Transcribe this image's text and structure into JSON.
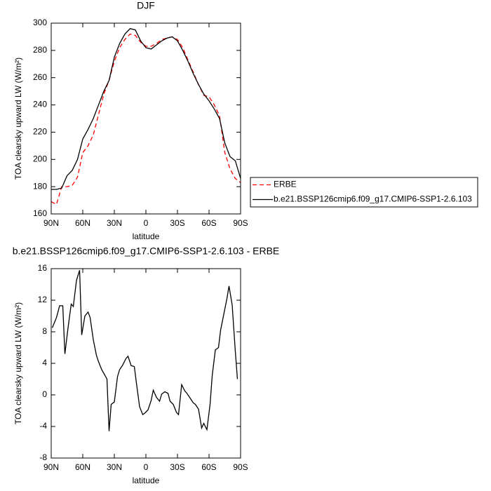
{
  "chart_data": [
    {
      "type": "line",
      "title": "DJF",
      "xlabel": "latitude",
      "ylabel": "TOA clearsky upward LW (W/m²)",
      "x": [
        90,
        85,
        80,
        75,
        70,
        65,
        60,
        55,
        50,
        45,
        40,
        35,
        30,
        25,
        20,
        15,
        10,
        5,
        0,
        -5,
        -10,
        -15,
        -20,
        -25,
        -30,
        -35,
        -40,
        -45,
        -50,
        -55,
        -60,
        -65,
        -70,
        -75,
        -80,
        -85,
        -90
      ],
      "series": [
        {
          "name": "ERBE",
          "color": "#ff0000",
          "dash": true,
          "values": [
            169,
            167,
            180,
            180,
            181,
            187,
            205,
            210,
            218,
            233,
            248,
            258,
            272,
            282,
            288,
            292,
            291,
            286,
            283,
            283,
            285,
            288,
            289,
            290,
            288,
            282,
            273,
            264,
            255,
            247,
            246,
            240,
            232,
            205,
            193,
            186,
            183
          ]
        },
        {
          "name": "b.e21.BSSP126cmip6.f09_g17.CMIP6-SSP1-2.6.103",
          "color": "#000000",
          "dash": false,
          "values": [
            178,
            178,
            179,
            188,
            192,
            200,
            215,
            222,
            230,
            240,
            250,
            258,
            275,
            285,
            292,
            296,
            295,
            287,
            282,
            281,
            284,
            287,
            289,
            290,
            287,
            280,
            272,
            263,
            255,
            248,
            243,
            237,
            230,
            212,
            202,
            199,
            186
          ]
        }
      ],
      "xlim": [
        90,
        -90
      ],
      "xticks": [
        {
          "value": 90,
          "label": "90N"
        },
        {
          "value": 60,
          "label": "60N"
        },
        {
          "value": 30,
          "label": "30N"
        },
        0,
        {
          "value": -30,
          "label": "30S"
        },
        {
          "value": -60,
          "label": "60S"
        },
        {
          "value": -90,
          "label": "90S"
        }
      ],
      "ylim": [
        160,
        300
      ],
      "yticks": [
        160,
        180,
        200,
        220,
        240,
        260,
        280,
        300
      ],
      "legend": "right"
    },
    {
      "type": "line",
      "title": "b.e21.BSSP126cmip6.f09_g17.CMIP6-SSP1-2.6.103 - ERBE",
      "xlabel": "latitude",
      "ylabel": "TOA clearsky upward LW (W/m²)",
      "x": [
        89,
        85,
        82,
        79,
        77,
        74,
        71,
        69,
        66,
        63,
        61,
        58,
        55,
        53,
        50,
        47,
        45,
        42,
        39,
        37,
        35,
        33,
        30,
        27,
        25,
        22,
        19,
        17,
        14,
        11,
        9,
        6,
        3,
        1,
        -2,
        -5,
        -7,
        -10,
        -13,
        -15,
        -18,
        -21,
        -23,
        -26,
        -29,
        -31,
        -34,
        -37,
        -39,
        -42,
        -45,
        -47,
        -50,
        -53,
        -55,
        -58,
        -61,
        -63,
        -66,
        -69,
        -71,
        -74,
        -77,
        -79,
        -82,
        -85,
        -87
      ],
      "values": [
        8.5,
        9.8,
        11.3,
        11.3,
        5.2,
        8.5,
        11.5,
        11.2,
        14.5,
        15.8,
        7.6,
        10,
        10.5,
        9.8,
        7,
        5,
        4.2,
        3.2,
        2.5,
        2,
        -4.6,
        -1.2,
        -0.9,
        2.3,
        3.2,
        3.8,
        4.6,
        4.9,
        3.7,
        3.6,
        1.5,
        -1.5,
        -2.5,
        -2.3,
        -1.9,
        -0.7,
        0.6,
        -0.3,
        -0.8,
        0.1,
        0.4,
        0.2,
        -0.8,
        -1.2,
        -2.2,
        -2.5,
        1.3,
        0.5,
        0.2,
        -0.4,
        -1,
        -1.2,
        -1.8,
        -4.2,
        -3.6,
        -4.4,
        -1.2,
        2.4,
        5.7,
        6,
        8.2,
        10.2,
        12.2,
        13.8,
        11.4,
        5.5,
        2
      ],
      "color": "#000000",
      "xlim": [
        90,
        -90
      ],
      "xticks": [
        {
          "value": 90,
          "label": "90N"
        },
        {
          "value": 60,
          "label": "60N"
        },
        {
          "value": 30,
          "label": "30N"
        },
        0,
        {
          "value": -30,
          "label": "30S"
        },
        {
          "value": -60,
          "label": "60S"
        },
        {
          "value": -90,
          "label": "90S"
        }
      ],
      "ylim": [
        -8,
        16
      ],
      "yticks": [
        -8,
        -4,
        0,
        4,
        8,
        12,
        16
      ]
    }
  ]
}
